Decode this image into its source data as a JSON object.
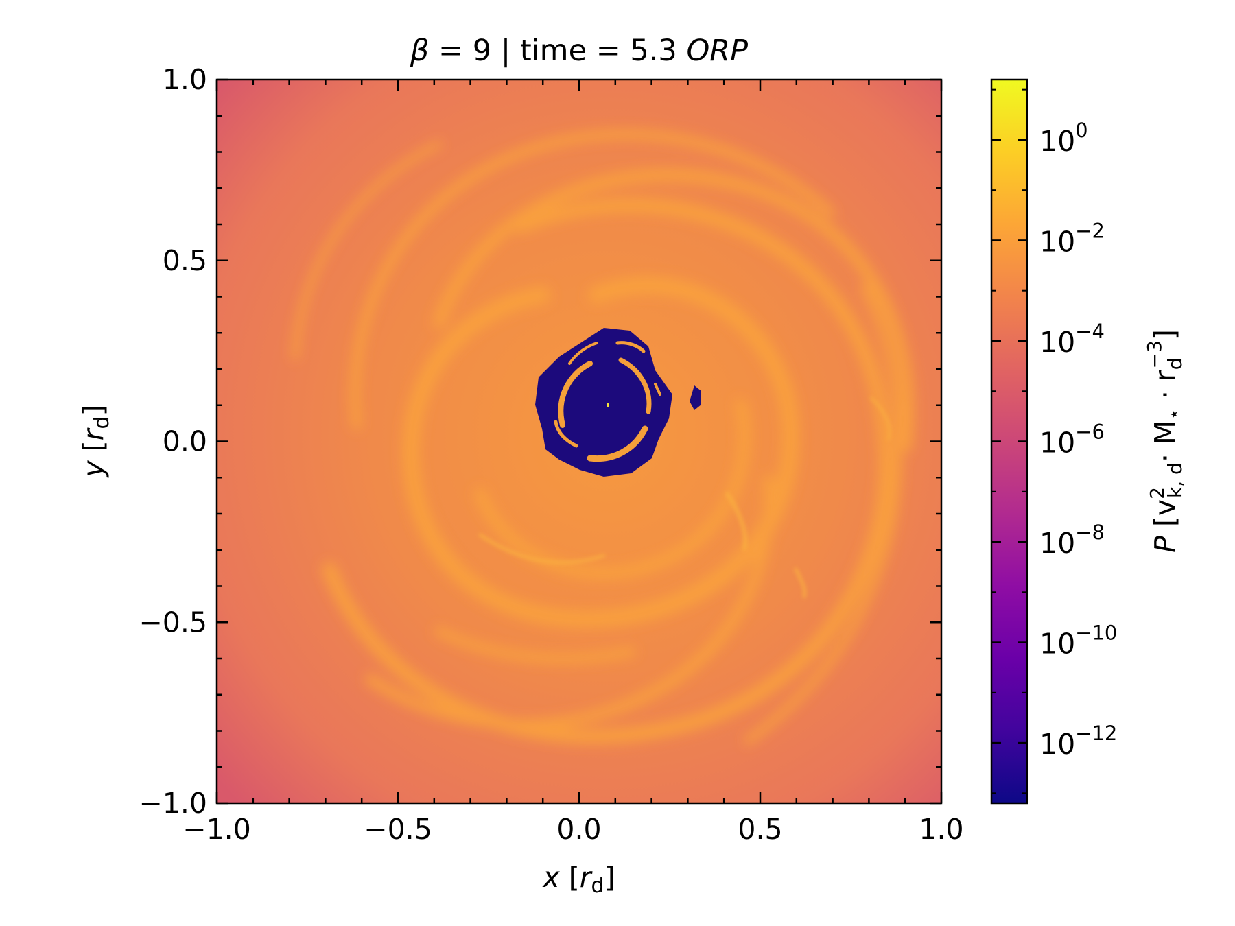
{
  "chart_data": {
    "type": "heatmap",
    "title": {
      "symbol": "β",
      "eq1": " = 9 | time = 5.3 ",
      "unit": "ORP"
    },
    "x_axis": {
      "label": {
        "var": "x",
        "pre": " [",
        "sym": "r",
        "sub": "d",
        "post": "]"
      },
      "range": [
        -1.0,
        1.0
      ],
      "ticks": [
        -1.0,
        -0.5,
        0.0,
        0.5,
        1.0
      ],
      "tick_labels": [
        "−1.0",
        "−0.5",
        "0.0",
        "0.5",
        "1.0"
      ]
    },
    "y_axis": {
      "label": {
        "var": "y",
        "pre": " [",
        "sym": "r",
        "sub": "d",
        "post": "]"
      },
      "range": [
        -1.0,
        1.0
      ],
      "ticks": [
        -1.0,
        -0.5,
        0.0,
        0.5,
        1.0
      ],
      "tick_labels": [
        "−1.0",
        "−0.5",
        "0.0",
        "0.5",
        "1.0"
      ]
    },
    "colorbar": {
      "scale": "log",
      "colormap": "plasma",
      "range_log10": [
        -13.2,
        1.2
      ],
      "ticks_log10": [
        0,
        -2,
        -4,
        -6,
        -8,
        -10,
        -12
      ],
      "tick_labels": [
        {
          "base": "10",
          "exp": "0"
        },
        {
          "base": "10",
          "exp": "−2"
        },
        {
          "base": "10",
          "exp": "−4"
        },
        {
          "base": "10",
          "exp": "−6"
        },
        {
          "base": "10",
          "exp": "−8"
        },
        {
          "base": "10",
          "exp": "−10"
        },
        {
          "base": "10",
          "exp": "−12"
        }
      ],
      "label": {
        "var": "P",
        "p1": " [v",
        "sup1": "2",
        "sub1": "k, d",
        "p2": "· M",
        "sub2": "⋆",
        "p3": " · r",
        "sub3": "d",
        "sup3": "−3",
        "p4": "]"
      }
    },
    "field_description_values": {
      "background_log10_P": -3.5,
      "spiral_arm_log10_P": -2.3,
      "corner_log10_P": -5.0,
      "central_void_log10_P": -13.0,
      "void_center": [
        0.08,
        0.1
      ]
    }
  }
}
